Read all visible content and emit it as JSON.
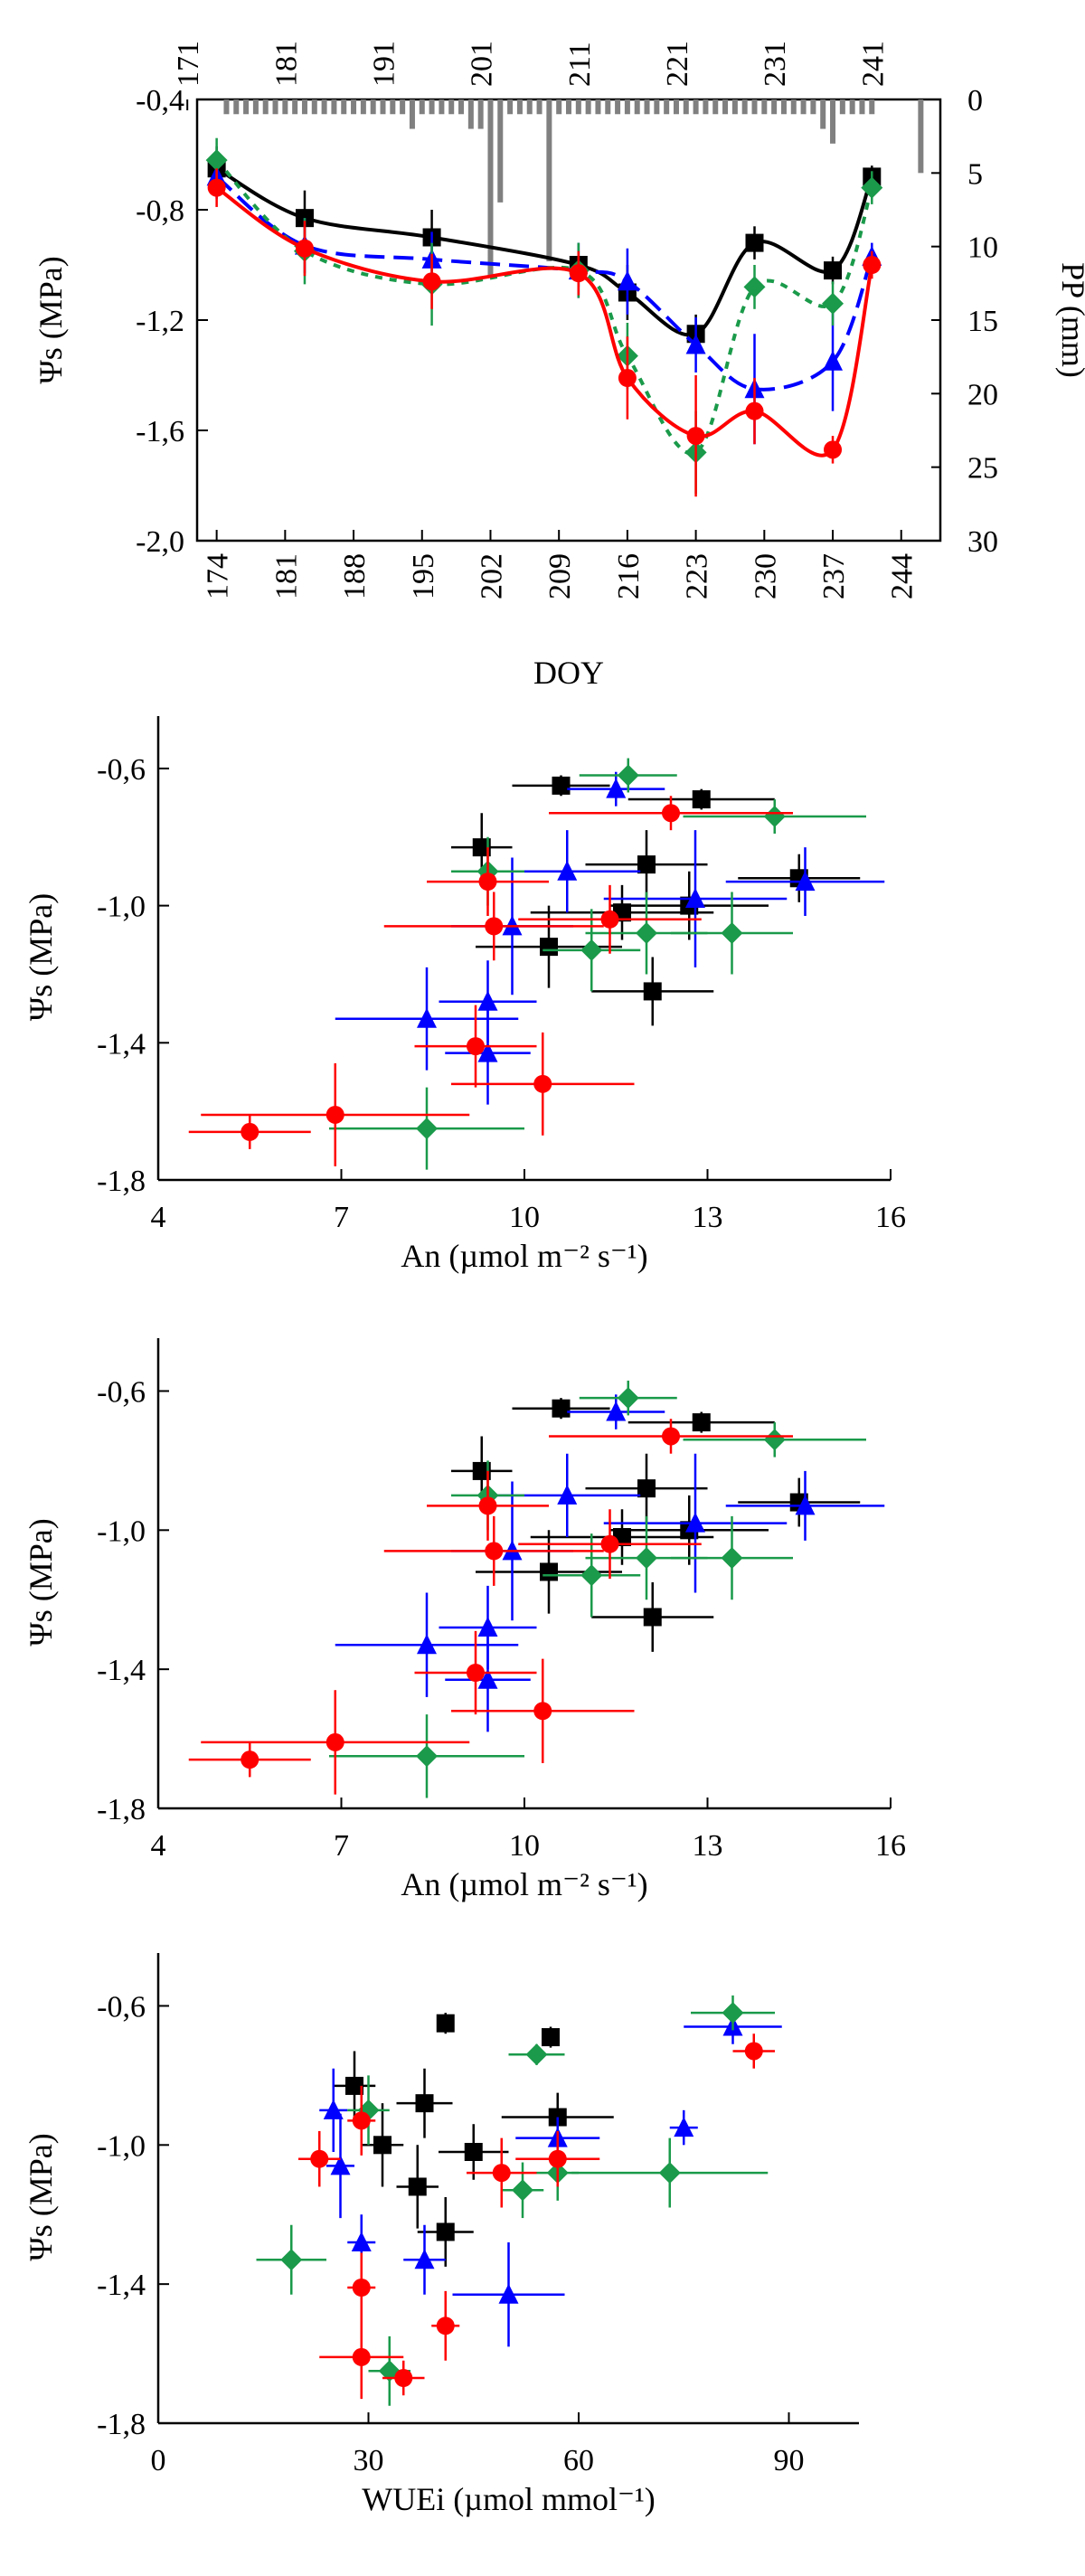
{
  "chart_data": [
    {
      "type": "line",
      "panel": "a",
      "ylabel": "Ψs (MPa)",
      "xlabel": "DOY",
      "y2label": "PP (mm)",
      "xlim": [
        172,
        248
      ],
      "ylim": [
        -2.0,
        -0.4
      ],
      "y2lim": [
        0,
        30
      ],
      "y2_inverted": true,
      "xticks": [
        174,
        181,
        188,
        195,
        202,
        209,
        216,
        223,
        230,
        237,
        244
      ],
      "yticks": [
        -0.4,
        -0.8,
        -1.2,
        -1.6,
        -2.0
      ],
      "ytick_labels": [
        "-0,4",
        "-0,8",
        "-1,2",
        "-1,6",
        "-2,0"
      ],
      "y2ticks": [
        0,
        5,
        10,
        15,
        20,
        25,
        30
      ],
      "top_xtick_labels": [
        "171",
        "181",
        "191",
        "201",
        "211",
        "221",
        "231",
        "241"
      ],
      "grid": false,
      "series": [
        {
          "color": "#000000",
          "marker": "square",
          "dash": "",
          "x": [
            174,
            183,
            196,
            211,
            216,
            223,
            229,
            237,
            241
          ],
          "y": [
            -0.65,
            -0.83,
            -0.9,
            -1.0,
            -1.1,
            -1.25,
            -0.92,
            -1.02,
            -0.68
          ],
          "err": [
            0.08,
            0.1,
            0.1,
            0.08,
            0.1,
            0.07,
            0.06,
            0.05,
            0.04
          ]
        },
        {
          "color": "#0000ff",
          "marker": "triangle",
          "dash": "22 10",
          "x": [
            174,
            183,
            196,
            211,
            216,
            223,
            229,
            237,
            241
          ],
          "y": [
            -0.68,
            -0.93,
            -0.98,
            -1.02,
            -1.06,
            -1.29,
            -1.45,
            -1.35,
            -0.97
          ],
          "err": [
            0.08,
            0.1,
            0.1,
            0.1,
            0.12,
            0.1,
            0.2,
            0.18,
            0.05
          ]
        },
        {
          "color": "#1a9a4a",
          "marker": "diamond",
          "dash": "8 8",
          "x": [
            174,
            183,
            196,
            211,
            216,
            223,
            229,
            237,
            241
          ],
          "y": [
            -0.62,
            -0.95,
            -1.07,
            -1.02,
            -1.33,
            -1.68,
            -1.08,
            -1.14,
            -0.72
          ],
          "err": [
            0.08,
            0.12,
            0.15,
            0.1,
            0.12,
            0.15,
            0.08,
            0.08,
            0.06
          ]
        },
        {
          "color": "#ff0000",
          "marker": "circle",
          "dash": "",
          "x": [
            174,
            183,
            196,
            211,
            216,
            223,
            229,
            237,
            241
          ],
          "y": [
            -0.72,
            -0.94,
            -1.06,
            -1.03,
            -1.41,
            -1.62,
            -1.53,
            -1.67,
            -1.0
          ],
          "err": [
            0.07,
            0.1,
            0.1,
            0.08,
            0.15,
            0.22,
            0.12,
            0.05,
            0.05
          ]
        }
      ],
      "precipitation": {
        "x": [
          175,
          176,
          177,
          178,
          179,
          180,
          181,
          182,
          183,
          184,
          185,
          186,
          187,
          188,
          189,
          190,
          191,
          192,
          193,
          194,
          195,
          196,
          197,
          198,
          199,
          200,
          201,
          202,
          203,
          204,
          205,
          206,
          207,
          208,
          209,
          210,
          211,
          212,
          213,
          214,
          215,
          216,
          217,
          218,
          219,
          220,
          221,
          222,
          223,
          224,
          225,
          226,
          227,
          228,
          229,
          230,
          231,
          232,
          233,
          234,
          235,
          236,
          237,
          238,
          239,
          240,
          241,
          246
        ],
        "pp": [
          1,
          1,
          1,
          1,
          1,
          1,
          1,
          1,
          1,
          1,
          1,
          1,
          1,
          1,
          1,
          1,
          1,
          1,
          1,
          2,
          1,
          1,
          1,
          1,
          1,
          2,
          2,
          12,
          7,
          1,
          1,
          1,
          1,
          11,
          1,
          1,
          1,
          1,
          1,
          1,
          1,
          1,
          1,
          1,
          1,
          1,
          1,
          1,
          1,
          1,
          1,
          1,
          1,
          1,
          1,
          1,
          1,
          1,
          1,
          1,
          1,
          2,
          3,
          1,
          1,
          1,
          1,
          5
        ]
      }
    },
    {
      "type": "scatter",
      "panel": "b",
      "ylabel": "Ψs (MPa)",
      "xlabel": "An (µmol m⁻² s⁻¹)",
      "xlim": [
        4,
        16
      ],
      "ylim": [
        -1.8,
        -0.5
      ],
      "xticks": [
        4,
        7,
        10,
        13,
        16
      ],
      "yticks": [
        -0.6,
        -1.0,
        -1.4,
        -1.8
      ],
      "ytick_labels": [
        "-0,6",
        "-1,0",
        "-1,4",
        "-1,8"
      ],
      "grid": false,
      "series": [
        {
          "color": "#000000",
          "marker": "square",
          "points": [
            [
              10.6,
              -0.65,
              0.8,
              0.03
            ],
            [
              12.9,
              -0.69,
              1.2,
              0.03
            ],
            [
              9.3,
              -0.83,
              0.5,
              0.1
            ],
            [
              12.0,
              -0.88,
              1.0,
              0.1
            ],
            [
              14.5,
              -0.92,
              1.0,
              0.07
            ],
            [
              11.6,
              -1.02,
              1.5,
              0.08
            ],
            [
              12.7,
              -1.0,
              1.3,
              0.1
            ],
            [
              10.4,
              -1.12,
              1.2,
              0.12
            ],
            [
              12.1,
              -1.25,
              1.0,
              0.1
            ]
          ]
        },
        {
          "color": "#0000ff",
          "marker": "triangle",
          "points": [
            [
              11.5,
              -0.66,
              0.8,
              0.05
            ],
            [
              14.6,
              -0.93,
              1.3,
              0.1
            ],
            [
              10.7,
              -0.9,
              1.2,
              0.12
            ],
            [
              9.8,
              -1.06,
              1.0,
              0.2
            ],
            [
              12.8,
              -0.98,
              1.5,
              0.2
            ],
            [
              8.4,
              -1.33,
              1.5,
              0.15
            ],
            [
              9.4,
              -1.28,
              0.8,
              0.12
            ],
            [
              9.4,
              -1.43,
              0.7,
              0.15
            ]
          ]
        },
        {
          "color": "#1a9a4a",
          "marker": "diamond",
          "points": [
            [
              11.7,
              -0.62,
              0.8,
              0.05
            ],
            [
              14.1,
              -0.74,
              1.5,
              0.05
            ],
            [
              9.4,
              -0.9,
              0.6,
              0.1
            ],
            [
              11.1,
              -1.13,
              0.8,
              0.12
            ],
            [
              12.0,
              -1.08,
              1.0,
              0.12
            ],
            [
              13.4,
              -1.08,
              1.0,
              0.12
            ],
            [
              8.4,
              -1.65,
              1.6,
              0.12
            ]
          ]
        },
        {
          "color": "#ff0000",
          "marker": "circle",
          "points": [
            [
              12.4,
              -0.73,
              2.0,
              0.05
            ],
            [
              9.4,
              -0.93,
              1.0,
              0.1
            ],
            [
              9.5,
              -1.06,
              1.8,
              0.1
            ],
            [
              11.4,
              -1.04,
              1.5,
              0.1
            ],
            [
              9.2,
              -1.41,
              1.0,
              0.12
            ],
            [
              10.3,
              -1.52,
              1.5,
              0.15
            ],
            [
              6.9,
              -1.61,
              2.2,
              0.15
            ],
            [
              5.5,
              -1.66,
              1.0,
              0.05
            ]
          ]
        }
      ]
    },
    {
      "type": "scatter",
      "panel": "c",
      "ylabel": "Ψs (MPa)",
      "xlabel": "An (µmol m⁻² s⁻¹)",
      "xlim": [
        4,
        16
      ],
      "ylim": [
        -1.8,
        -0.5
      ],
      "xticks": [
        4,
        7,
        10,
        13,
        16
      ],
      "yticks": [
        -0.6,
        -1.0,
        -1.4,
        -1.8
      ],
      "ytick_labels": [
        "-0,6",
        "-1,0",
        "-1,4",
        "-1,8"
      ],
      "grid": false,
      "series": [
        {
          "color": "#000000",
          "marker": "square",
          "points": [
            [
              10.6,
              -0.65,
              0.8,
              0.03
            ],
            [
              12.9,
              -0.69,
              1.2,
              0.03
            ],
            [
              9.3,
              -0.83,
              0.5,
              0.1
            ],
            [
              12.0,
              -0.88,
              1.0,
              0.1
            ],
            [
              14.5,
              -0.92,
              1.0,
              0.07
            ],
            [
              11.6,
              -1.02,
              1.5,
              0.08
            ],
            [
              12.7,
              -1.0,
              1.3,
              0.1
            ],
            [
              10.4,
              -1.12,
              1.2,
              0.12
            ],
            [
              12.1,
              -1.25,
              1.0,
              0.1
            ]
          ]
        },
        {
          "color": "#0000ff",
          "marker": "triangle",
          "points": [
            [
              11.5,
              -0.66,
              0.8,
              0.05
            ],
            [
              14.6,
              -0.93,
              1.3,
              0.1
            ],
            [
              10.7,
              -0.9,
              1.2,
              0.12
            ],
            [
              9.8,
              -1.06,
              1.0,
              0.2
            ],
            [
              12.8,
              -0.98,
              1.5,
              0.2
            ],
            [
              8.4,
              -1.33,
              1.5,
              0.15
            ],
            [
              9.4,
              -1.28,
              0.8,
              0.12
            ],
            [
              9.4,
              -1.43,
              0.7,
              0.15
            ]
          ]
        },
        {
          "color": "#1a9a4a",
          "marker": "diamond",
          "points": [
            [
              11.7,
              -0.62,
              0.8,
              0.05
            ],
            [
              14.1,
              -0.74,
              1.5,
              0.05
            ],
            [
              9.4,
              -0.9,
              0.6,
              0.1
            ],
            [
              11.1,
              -1.13,
              0.8,
              0.12
            ],
            [
              12.0,
              -1.08,
              1.0,
              0.12
            ],
            [
              13.4,
              -1.08,
              1.0,
              0.12
            ],
            [
              8.4,
              -1.65,
              1.6,
              0.12
            ]
          ]
        },
        {
          "color": "#ff0000",
          "marker": "circle",
          "points": [
            [
              12.4,
              -0.73,
              2.0,
              0.05
            ],
            [
              9.4,
              -0.93,
              1.0,
              0.1
            ],
            [
              9.5,
              -1.06,
              1.8,
              0.1
            ],
            [
              11.4,
              -1.04,
              1.5,
              0.1
            ],
            [
              9.2,
              -1.41,
              1.0,
              0.12
            ],
            [
              10.3,
              -1.52,
              1.5,
              0.15
            ],
            [
              6.9,
              -1.61,
              2.2,
              0.15
            ],
            [
              5.5,
              -1.66,
              1.0,
              0.05
            ]
          ]
        }
      ]
    },
    {
      "type": "scatter",
      "panel": "d",
      "ylabel": "Ψs (MPa)",
      "xlabel": "WUEi (µmol mmol⁻¹)",
      "xlim": [
        0,
        100
      ],
      "ylim": [
        -1.8,
        -0.5
      ],
      "xticks": [
        0,
        30,
        60,
        90
      ],
      "yticks": [
        -0.6,
        -1.0,
        -1.4,
        -1.8
      ],
      "ytick_labels": [
        "-0,6",
        "-1,0",
        "-1,4",
        "-1,8"
      ],
      "grid": false,
      "series": [
        {
          "color": "#000000",
          "marker": "square",
          "points": [
            [
              41,
              -0.65,
              0,
              0.03
            ],
            [
              56,
              -0.69,
              0,
              0.03
            ],
            [
              28,
              -0.83,
              3,
              0.1
            ],
            [
              38,
              -0.88,
              4,
              0.1
            ],
            [
              57,
              -0.92,
              8,
              0.07
            ],
            [
              45,
              -1.02,
              5,
              0.08
            ],
            [
              32,
              -1.0,
              3,
              0.12
            ],
            [
              37,
              -1.12,
              3,
              0.12
            ],
            [
              41,
              -1.25,
              4,
              0.1
            ]
          ]
        },
        {
          "color": "#0000ff",
          "marker": "triangle",
          "points": [
            [
              82,
              -0.66,
              7,
              0.05
            ],
            [
              75,
              -0.95,
              2,
              0.05
            ],
            [
              57,
              -0.98,
              6,
              0.06
            ],
            [
              26,
              -1.06,
              2,
              0.15
            ],
            [
              29,
              -1.28,
              2,
              0.08
            ],
            [
              38,
              -1.33,
              3,
              0.1
            ],
            [
              50,
              -1.43,
              8,
              0.15
            ],
            [
              25,
              -0.9,
              2,
              0.12
            ]
          ]
        },
        {
          "color": "#1a9a4a",
          "marker": "diamond",
          "points": [
            [
              82,
              -0.62,
              6,
              0.05
            ],
            [
              54,
              -0.74,
              4,
              0.03
            ],
            [
              30,
              -0.9,
              3,
              0.1
            ],
            [
              52,
              -1.13,
              3,
              0.08
            ],
            [
              57,
              -1.08,
              3,
              0.08
            ],
            [
              73,
              -1.08,
              14,
              0.1
            ],
            [
              19,
              -1.33,
              5,
              0.1
            ],
            [
              33,
              -1.65,
              3,
              0.1
            ]
          ]
        },
        {
          "color": "#ff0000",
          "marker": "circle",
          "points": [
            [
              85,
              -0.73,
              3,
              0.05
            ],
            [
              29,
              -0.93,
              2,
              0.1
            ],
            [
              23,
              -1.04,
              3,
              0.08
            ],
            [
              57,
              -1.04,
              6,
              0.08
            ],
            [
              49,
              -1.08,
              5,
              0.1
            ],
            [
              29,
              -1.41,
              2,
              0.1
            ],
            [
              41,
              -1.52,
              2,
              0.1
            ],
            [
              29,
              -1.61,
              6,
              0.12
            ],
            [
              35,
              -1.67,
              3,
              0.05
            ]
          ]
        }
      ]
    }
  ]
}
